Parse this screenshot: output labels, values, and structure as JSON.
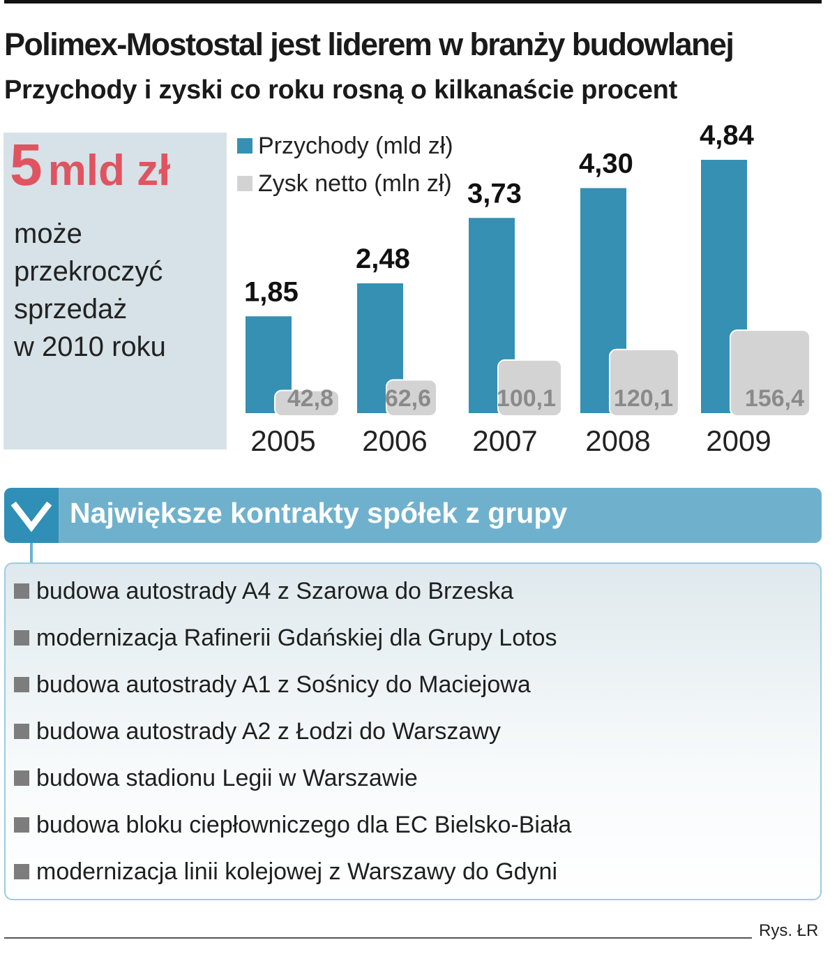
{
  "title": "Polimex-Mostostal jest liderem w branży budowlanej",
  "subtitle": "Przychody i zyski co roku rosną o kilkanaście procent",
  "callout": {
    "big_number": "5",
    "big_unit": "mld zł",
    "text_lines": [
      "może",
      "przekroczyć",
      "sprzedaż",
      "w 2010 roku"
    ]
  },
  "colors": {
    "revenue": "#3590b3",
    "profit": "#d3d3d3",
    "accent_red": "#e05461",
    "header_bg": "#6fb1cd"
  },
  "chart_data": {
    "type": "bar",
    "categories": [
      "2005",
      "2006",
      "2007",
      "2008",
      "2009"
    ],
    "series": [
      {
        "name": "Przychody (mld zł)",
        "values": [
          1.85,
          2.48,
          3.73,
          4.3,
          4.84
        ],
        "labels": [
          "1,85",
          "2,48",
          "3,73",
          "4,30",
          "4,84"
        ]
      },
      {
        "name": "Zysk netto (mln zł)",
        "values": [
          42.8,
          62.6,
          100.1,
          120.1,
          156.4
        ],
        "labels": [
          "42,8",
          "62,6",
          "100,1",
          "120,1",
          "156,4"
        ]
      }
    ],
    "legend": "top-left",
    "grid": false
  },
  "contracts": {
    "header": "Największe kontrakty spółek z grupy",
    "items": [
      "budowa autostrady A4 z Szarowa do Brzeska",
      "modernizacja Rafinerii Gdańskiej dla Grupy Lotos",
      "budowa autostrady A1 z Sośnicy do Maciejowa",
      "budowa autostrady A2 z Łodzi do Warszawy",
      "budowa stadionu Legii w Warszawie",
      "budowa bloku ciepłowniczego dla EC Bielsko-Biała",
      "modernizacja linii kolejowej z Warszawy do Gdyni"
    ]
  },
  "credit": "Rys. ŁR"
}
